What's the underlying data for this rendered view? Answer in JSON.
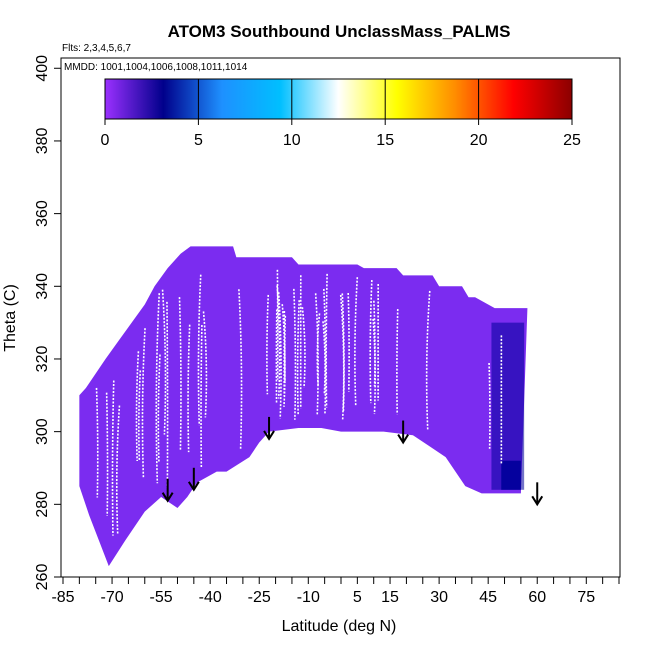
{
  "chart_data": {
    "type": "heatmap",
    "title": "ATOM3 Southbound UnclassMass_PALMS",
    "annotations": {
      "flights": "Flts: 2,3,4,5,6,7",
      "dates": "MMDD: 1001,1004,1006,1008,1011,1014"
    },
    "xlabel": "Latitude (deg N)",
    "ylabel": "Theta (C)",
    "xlim": [
      -85,
      85
    ],
    "ylim": [
      260,
      402
    ],
    "x_tick_labels": [
      "-85",
      "-70",
      "-55",
      "-40",
      "-25",
      "-10",
      "5",
      "15",
      "30",
      "45",
      "60",
      "75"
    ],
    "x_tick_values": [
      -85,
      -70,
      -55,
      -40,
      -25,
      -10,
      5,
      15,
      30,
      45,
      60,
      75
    ],
    "y_tick_labels": [
      "260",
      "280",
      "300",
      "320",
      "340",
      "360",
      "380",
      "400"
    ],
    "y_tick_values": [
      260,
      280,
      300,
      320,
      340,
      360,
      380,
      400
    ],
    "grid": false,
    "colorbar": {
      "min": 0,
      "max": 25,
      "tick_labels": [
        "0",
        "5",
        "10",
        "15",
        "20",
        "25"
      ],
      "tick_values": [
        0,
        5,
        10,
        15,
        20,
        25
      ],
      "colors": [
        "#9b30ff",
        "#00008b",
        "#1e90ff",
        "#00bfff",
        "#ffffff",
        "#ffff00",
        "#ff8c00",
        "#ff0000",
        "#8b0000"
      ]
    },
    "data_region": {
      "dominant_value": 1,
      "dominant_color": "#7b2cf0",
      "top_boundary": [
        [
          -80,
          310
        ],
        [
          -78,
          312
        ],
        [
          -75,
          316
        ],
        [
          -72,
          320
        ],
        [
          -68,
          325
        ],
        [
          -64,
          330
        ],
        [
          -60,
          335
        ],
        [
          -57,
          340
        ],
        [
          -53,
          345
        ],
        [
          -49,
          349
        ],
        [
          -46,
          351
        ],
        [
          -33,
          351
        ],
        [
          -32,
          348
        ],
        [
          -15,
          348
        ],
        [
          -13,
          346
        ],
        [
          5,
          346
        ],
        [
          7,
          345
        ],
        [
          17,
          345
        ],
        [
          19,
          343
        ],
        [
          28,
          343
        ],
        [
          30,
          340
        ],
        [
          37,
          340
        ],
        [
          39,
          337
        ],
        [
          41,
          337
        ],
        [
          45,
          335
        ],
        [
          47,
          334
        ],
        [
          55,
          334
        ],
        [
          57,
          334
        ]
      ],
      "bottom_boundary": [
        [
          -80,
          285
        ],
        [
          -77,
          277
        ],
        [
          -74,
          270
        ],
        [
          -71,
          263
        ],
        [
          -66,
          270
        ],
        [
          -60,
          278
        ],
        [
          -55,
          282
        ],
        [
          -50,
          279
        ],
        [
          -47,
          282
        ],
        [
          -44,
          286
        ],
        [
          -38,
          289
        ],
        [
          -35,
          289
        ],
        [
          -28,
          293
        ],
        [
          -25,
          297
        ],
        [
          -22,
          300
        ],
        [
          -13,
          301
        ],
        [
          -6,
          301
        ],
        [
          0,
          300
        ],
        [
          5,
          300
        ],
        [
          13,
          300
        ],
        [
          22,
          299
        ],
        [
          27,
          296
        ],
        [
          32,
          293
        ],
        [
          35,
          289
        ],
        [
          38,
          285
        ],
        [
          43,
          283
        ],
        [
          49,
          283
        ],
        [
          55,
          283
        ]
      ],
      "high_value_patch": {
        "lat": [
          46,
          56
        ],
        "theta": [
          284,
          330
        ],
        "value": 3,
        "color": "#00009a"
      }
    },
    "marked_latitudes": [
      {
        "lat": -53,
        "theta": 286
      },
      {
        "lat": -45,
        "theta": 289
      },
      {
        "lat": -22,
        "theta": 303
      },
      {
        "lat": 19,
        "theta": 302
      },
      {
        "lat": 60,
        "theta": 285
      }
    ]
  }
}
